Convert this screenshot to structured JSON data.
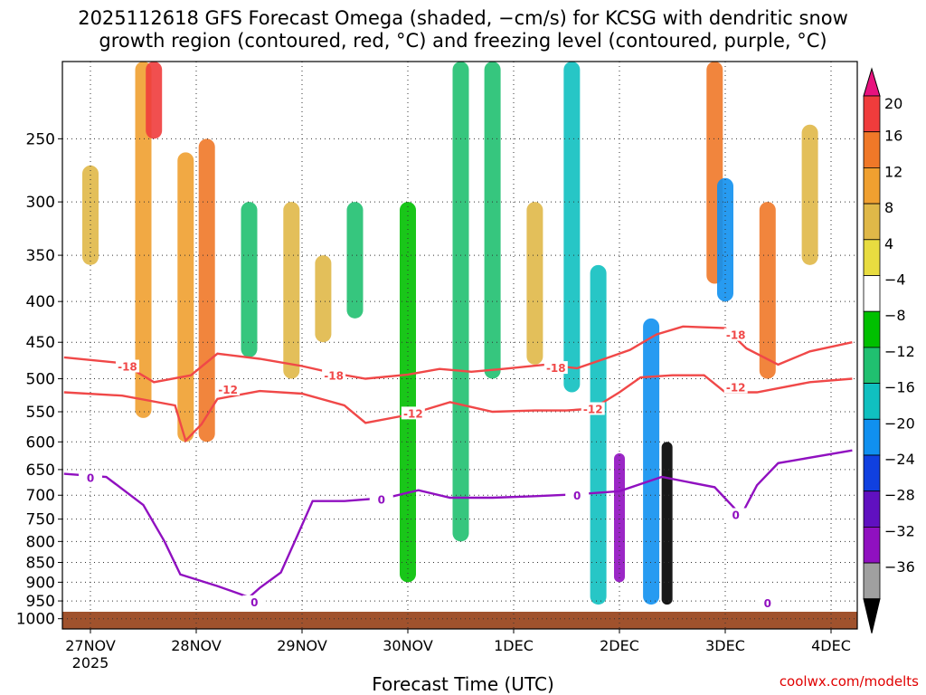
{
  "title_line1": "2025112618 GFS Forecast Omega (shaded, −cm/s) for KCSG with dendritic snow",
  "title_line2": "growth region (contoured, red, °C) and freezing level (contoured, purple, °C)",
  "credit": "coolwx.com/modelts",
  "chart_data": {
    "type": "heatmap",
    "title": "2025112618 GFS Forecast Omega (shaded, −cm/s) for KCSG with dendritic snow growth region (contoured, red, °C) and freezing level (contoured, purple, °C)",
    "xlabel": "Forecast Time (UTC)",
    "ylabel": "",
    "y_axis": {
      "scale": "pressure",
      "units": "hPa",
      "range": [
        1030,
        200
      ],
      "ticks": [
        250,
        300,
        350,
        400,
        450,
        500,
        550,
        600,
        650,
        700,
        750,
        800,
        850,
        900,
        950,
        1000
      ]
    },
    "x_axis": {
      "range_days": [
        -0.25,
        7.2
      ],
      "ticks": [
        {
          "day": 0,
          "label": "27NOV",
          "sublabel": "2025"
        },
        {
          "day": 1,
          "label": "28NOV"
        },
        {
          "day": 2,
          "label": "29NOV"
        },
        {
          "day": 3,
          "label": "30NOV"
        },
        {
          "day": 4,
          "label": "1DEC"
        },
        {
          "day": 5,
          "label": "2DEC"
        },
        {
          "day": 6,
          "label": "3DEC"
        },
        {
          "day": 7,
          "label": "4DEC"
        }
      ]
    },
    "grid": true,
    "colorbar": {
      "labels": [
        "20",
        "16",
        "12",
        "8",
        "4",
        "−4",
        "−8",
        "−12",
        "−16",
        "−20",
        "−24",
        "−28",
        "−32",
        "−36"
      ],
      "colors": [
        "#e8127e",
        "#f03c3c",
        "#f07828",
        "#f0a030",
        "#e0b848",
        "#e8dc40",
        "#ffffff",
        "#00c000",
        "#20c070",
        "#10c0c0",
        "#1090f0",
        "#1040e0",
        "#6010c0",
        "#9010c0",
        "#a0a0a0",
        "#000000"
      ]
    },
    "series": [
      {
        "name": "-18",
        "color": "#f04848",
        "points": [
          [
            -0.25,
            470
          ],
          [
            0.3,
            478
          ],
          [
            0.6,
            505
          ],
          [
            0.95,
            495
          ],
          [
            1.2,
            465
          ],
          [
            1.6,
            472
          ],
          [
            2.0,
            482
          ],
          [
            2.3,
            492
          ],
          [
            2.6,
            500
          ],
          [
            3.0,
            494
          ],
          [
            3.3,
            486
          ],
          [
            3.6,
            490
          ],
          [
            3.9,
            486
          ],
          [
            4.3,
            480
          ],
          [
            4.6,
            485
          ],
          [
            4.9,
            470
          ],
          [
            5.1,
            460
          ],
          [
            5.35,
            440
          ],
          [
            5.6,
            430
          ],
          [
            6.0,
            432
          ],
          [
            6.2,
            458
          ],
          [
            6.5,
            480
          ],
          [
            6.8,
            462
          ],
          [
            7.2,
            450
          ]
        ],
        "labels": [
          {
            "day": 0.35,
            "p": 482
          },
          {
            "day": 2.3,
            "p": 495
          },
          {
            "day": 4.4,
            "p": 484
          },
          {
            "day": 6.1,
            "p": 440
          }
        ]
      },
      {
        "name": "-12",
        "color": "#f04848",
        "points": [
          [
            -0.25,
            520
          ],
          [
            0.3,
            525
          ],
          [
            0.8,
            540
          ],
          [
            0.9,
            598
          ],
          [
            1.05,
            570
          ],
          [
            1.2,
            530
          ],
          [
            1.6,
            518
          ],
          [
            2.0,
            522
          ],
          [
            2.4,
            540
          ],
          [
            2.6,
            568
          ],
          [
            3.0,
            555
          ],
          [
            3.4,
            535
          ],
          [
            3.8,
            550
          ],
          [
            4.2,
            548
          ],
          [
            4.5,
            548
          ],
          [
            4.75,
            545
          ],
          [
            5.0,
            520
          ],
          [
            5.2,
            498
          ],
          [
            5.5,
            495
          ],
          [
            5.8,
            495
          ],
          [
            6.0,
            520
          ],
          [
            6.3,
            520
          ],
          [
            6.8,
            505
          ],
          [
            7.2,
            500
          ]
        ],
        "labels": [
          {
            "day": 1.3,
            "p": 515
          },
          {
            "day": 3.05,
            "p": 552
          },
          {
            "day": 4.75,
            "p": 545
          },
          {
            "day": 6.1,
            "p": 512
          }
        ]
      },
      {
        "name": "0",
        "color": "#9010c0",
        "points": [
          [
            -0.25,
            658
          ],
          [
            0.15,
            664
          ],
          [
            0.5,
            720
          ],
          [
            0.7,
            800
          ],
          [
            0.85,
            880
          ],
          [
            1.2,
            910
          ],
          [
            1.5,
            940
          ],
          [
            1.6,
            915
          ],
          [
            1.8,
            875
          ],
          [
            1.95,
            790
          ],
          [
            2.1,
            712
          ],
          [
            2.4,
            712
          ],
          [
            2.8,
            705
          ],
          [
            3.1,
            690
          ],
          [
            3.4,
            705
          ],
          [
            3.8,
            705
          ],
          [
            4.2,
            702
          ],
          [
            4.6,
            698
          ],
          [
            5.0,
            692
          ],
          [
            5.4,
            664
          ],
          [
            5.9,
            684
          ],
          [
            6.15,
            742
          ],
          [
            6.3,
            680
          ],
          [
            6.5,
            638
          ],
          [
            7.2,
            615
          ]
        ],
        "labels": [
          {
            "day": 0,
            "p": 665
          },
          {
            "day": 2.75,
            "p": 708
          },
          {
            "day": 4.6,
            "p": 700
          },
          {
            "day": 6.1,
            "p": 740
          },
          {
            "day": 6.4,
            "p": 955
          },
          {
            "day": 1.55,
            "p": 952
          }
        ]
      }
    ],
    "shading": [
      {
        "day": 0.0,
        "p_top": 270,
        "p_bottom": 360,
        "value": 6
      },
      {
        "day": 0.5,
        "p_top": 200,
        "p_bottom": 560,
        "value": 8
      },
      {
        "day": 0.6,
        "p_top": 200,
        "p_bottom": 250,
        "value": 16
      },
      {
        "day": 0.9,
        "p_top": 260,
        "p_bottom": 600,
        "value": 10
      },
      {
        "day": 1.1,
        "p_top": 250,
        "p_bottom": 600,
        "value": 12
      },
      {
        "day": 1.5,
        "p_top": 300,
        "p_bottom": 470,
        "value": -8
      },
      {
        "day": 1.9,
        "p_top": 300,
        "p_bottom": 500,
        "value": 6
      },
      {
        "day": 2.2,
        "p_top": 350,
        "p_bottom": 450,
        "value": 6
      },
      {
        "day": 2.5,
        "p_top": 300,
        "p_bottom": 420,
        "value": -8
      },
      {
        "day": 3.0,
        "p_top": 300,
        "p_bottom": 900,
        "value": -6
      },
      {
        "day": 3.5,
        "p_top": 200,
        "p_bottom": 800,
        "value": -8
      },
      {
        "day": 3.8,
        "p_top": 200,
        "p_bottom": 500,
        "value": -10
      },
      {
        "day": 4.2,
        "p_top": 300,
        "p_bottom": 480,
        "value": 6
      },
      {
        "day": 4.55,
        "p_top": 200,
        "p_bottom": 520,
        "value": -14
      },
      {
        "day": 4.8,
        "p_top": 360,
        "p_bottom": 960,
        "value": -14
      },
      {
        "day": 5.0,
        "p_top": 620,
        "p_bottom": 900,
        "value": -30
      },
      {
        "day": 5.3,
        "p_top": 420,
        "p_bottom": 960,
        "value": -18
      },
      {
        "day": 5.45,
        "p_top": 600,
        "p_bottom": 960,
        "value": -36
      },
      {
        "day": 5.9,
        "p_top": 200,
        "p_bottom": 380,
        "value": 12
      },
      {
        "day": 6.0,
        "p_top": 280,
        "p_bottom": 400,
        "value": -16
      },
      {
        "day": 6.4,
        "p_top": 300,
        "p_bottom": 500,
        "value": 12
      },
      {
        "day": 6.8,
        "p_top": 240,
        "p_bottom": 360,
        "value": 6
      }
    ]
  }
}
